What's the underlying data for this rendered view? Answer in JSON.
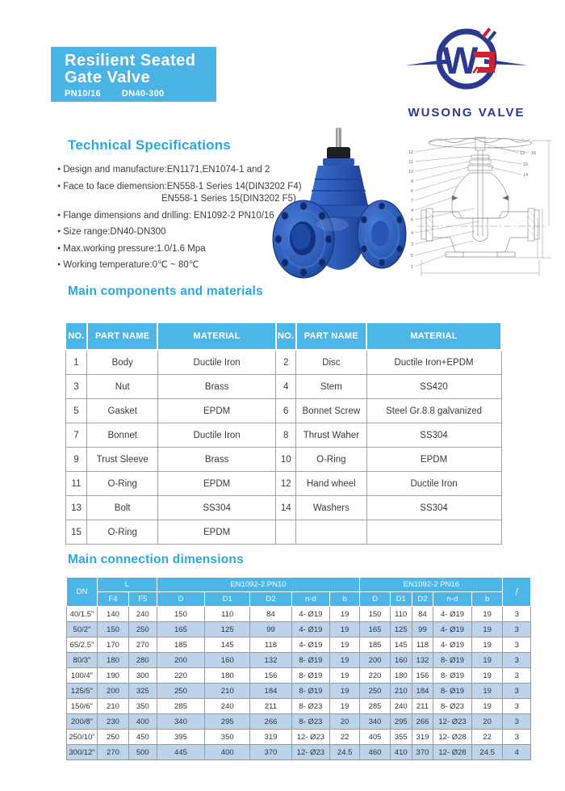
{
  "header": {
    "title_line1": "Resilient Seated",
    "title_line2": "Gate Valve",
    "pressure_rating": "PN10/16",
    "size_range": "DN40-300"
  },
  "logo": {
    "monogram_letter": "W",
    "brand_name": "WUSONG VALVE"
  },
  "colors": {
    "accent_cyan": "#4ab4e6",
    "table_header_cyan": "#4cb6e8",
    "heading_cyan": "#2ba8e0",
    "row_alt_blue": "#bdd3ec",
    "logo_navy": "#2b3990",
    "logo_red": "#cf2031",
    "valve_blue": "#2a57b4"
  },
  "tech_specs": {
    "heading": "Technical Specifications",
    "items": [
      {
        "text": "Design and manufacture:EN1171,EN1074-1 and 2"
      },
      {
        "text": "Face to face diemension:EN558-1 Series 14(DIN3202 F4)",
        "cont": "EN558-1 Series 15(DIN3202 F5)"
      },
      {
        "text": "Flange dimensions and drilling: EN1092-2 PN10/16"
      },
      {
        "text": "Size range:DN40-DN300"
      },
      {
        "text": "Max.working pressure:1.0/1.6 Mpa"
      },
      {
        "text": "Working temperature:0℃ ~ 80℃"
      }
    ]
  },
  "components": {
    "heading": "Main components and materials",
    "header": [
      "NO.",
      "PART NAME",
      "MATERIAL",
      "NO.",
      "PART NAME",
      "MATERIAL"
    ],
    "rows": [
      [
        "1",
        "Body",
        "Ductile Iron",
        "2",
        "Disc",
        "Ductile Iron+EPDM"
      ],
      [
        "3",
        "Nut",
        "Brass",
        "4",
        "Stem",
        "SS420"
      ],
      [
        "5",
        "Gasket",
        "EPDM",
        "6",
        "Bonnet Screw",
        "Steel Gr.8.8 galvanized"
      ],
      [
        "7",
        "Bonnet",
        "Ductile Iron",
        "8",
        "Thrust Waher",
        "SS304"
      ],
      [
        "9",
        "Trust Sleeve",
        "Brass",
        "10",
        "O-Ring",
        "EPDM"
      ],
      [
        "11",
        "O-Ring",
        "EPDM",
        "12",
        "Hand wheel",
        "Ductile Iron"
      ],
      [
        "13",
        "Bolt",
        "SS304",
        "14",
        "Washers",
        "SS304"
      ],
      [
        "15",
        "O-Ring",
        "EPDM",
        "",
        "",
        ""
      ]
    ]
  },
  "dimensions": {
    "heading": "Main connection dimensions",
    "col_dn": "DN",
    "col_l": "L",
    "col_pn10": "EN1092-2 PN10",
    "col_pn16": "EN1092-2 PN16",
    "col_f": "f",
    "sub_headers": [
      "F4",
      "F5",
      "D",
      "D1",
      "D2",
      "n-d",
      "b",
      "D",
      "D1",
      "D2",
      "n-d",
      "b"
    ],
    "rows": [
      [
        "40/1.5\"",
        "140",
        "240",
        "150",
        "110",
        "84",
        "4- Ø19",
        "19",
        "150",
        "110",
        "84",
        "4- Ø19",
        "19",
        "3"
      ],
      [
        "50/2\"",
        "150",
        "250",
        "165",
        "125",
        "99",
        "4- Ø19",
        "19",
        "165",
        "125",
        "99",
        "4- Ø19",
        "19",
        "3"
      ],
      [
        "65/2.5\"",
        "170",
        "270",
        "185",
        "145",
        "118",
        "4- Ø19",
        "19",
        "185",
        "145",
        "118",
        "4- Ø19",
        "19",
        "3"
      ],
      [
        "80/3\"",
        "180",
        "280",
        "200",
        "160",
        "132",
        "8- Ø19",
        "19",
        "200",
        "160",
        "132",
        "8- Ø19",
        "19",
        "3"
      ],
      [
        "100/4\"",
        "190",
        "300",
        "220",
        "180",
        "156",
        "8- Ø19",
        "19",
        "220",
        "180",
        "156",
        "8- Ø19",
        "19",
        "3"
      ],
      [
        "125/5\"",
        "200",
        "325",
        "250",
        "210",
        "184",
        "8- Ø19",
        "19",
        "250",
        "210",
        "184",
        "8- Ø19",
        "19",
        "3"
      ],
      [
        "150/6\"",
        "210",
        "350",
        "285",
        "240",
        "211",
        "8- Ø23",
        "19",
        "285",
        "240",
        "211",
        "8- Ø23",
        "19",
        "3"
      ],
      [
        "200/8\"",
        "230",
        "400",
        "340",
        "295",
        "266",
        "8- Ø23",
        "20",
        "340",
        "295",
        "266",
        "12- Ø23",
        "20",
        "3"
      ],
      [
        "250/10\"",
        "250",
        "450",
        "395",
        "350",
        "319",
        "12- Ø23",
        "22",
        "405",
        "355",
        "319",
        "12- Ø28",
        "22",
        "3"
      ],
      [
        "300/12\"",
        "270",
        "500",
        "445",
        "400",
        "370",
        "12- Ø23",
        "24.5",
        "460",
        "410",
        "370",
        "12- Ø28",
        "24.5",
        "4"
      ]
    ]
  },
  "drawing": {
    "callouts_left": [
      "12",
      "11",
      "13",
      "8",
      "6",
      "7",
      "4",
      "5",
      "4",
      "3",
      "5",
      "1"
    ],
    "callouts_right": [
      "12",
      "16",
      "15",
      "14"
    ]
  }
}
